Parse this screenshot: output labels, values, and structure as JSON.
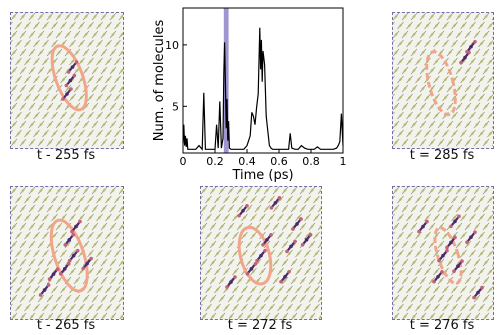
{
  "snapshots": [
    {
      "id": "a",
      "caption": "t - 255 fs",
      "ring_color": "#f2a58a",
      "ring_style": "solid"
    },
    {
      "id": "b",
      "caption": "t = 285 fs",
      "ring_color": "#f2a58a",
      "ring_style": "dashed"
    },
    {
      "id": "c",
      "caption": "t - 265 fs",
      "ring_color": "#f2a58a",
      "ring_style": "solid"
    },
    {
      "id": "d",
      "caption": "t = 272 fs",
      "ring_color": "#f2a58a",
      "ring_style": "solid"
    },
    {
      "id": "e",
      "caption": "t = 276 fs",
      "ring_color": "#f2a58a",
      "ring_style": "dashed"
    }
  ],
  "colors": {
    "lattice": "#b5b86a",
    "lattice_line": "#8a8a6a",
    "molecule": "#4a2a6a",
    "molecule_accent": "#c0607a",
    "frame": "#6f6fa8",
    "highlight_band": "#9f95cf"
  },
  "chart_data": {
    "type": "line",
    "xlabel": "Time (ps)",
    "ylabel": "Num. of molecules",
    "xlim": [
      0,
      1.0
    ],
    "ylim": [
      1.2,
      13
    ],
    "xticks": [
      0,
      0.2,
      0.4,
      0.6,
      0.8,
      1
    ],
    "xtick_labels": [
      "0",
      "0.2",
      "0.4",
      "0.6",
      "0.8",
      "1"
    ],
    "yticks": [
      5,
      10
    ],
    "ytick_labels": [
      "5",
      "10"
    ],
    "highlight_band": [
      0.255,
      0.285
    ],
    "series": [
      {
        "x": [
          0.0,
          0.005,
          0.01,
          0.015,
          0.02,
          0.025,
          0.03,
          0.05,
          0.08,
          0.1,
          0.12,
          0.13,
          0.14,
          0.15,
          0.17,
          0.2,
          0.21,
          0.22,
          0.23,
          0.24,
          0.25,
          0.255,
          0.26,
          0.265,
          0.27,
          0.275,
          0.28,
          0.285,
          0.29,
          0.3,
          0.32,
          0.33,
          0.34,
          0.35,
          0.36,
          0.38,
          0.4,
          0.42,
          0.43,
          0.44,
          0.45,
          0.46,
          0.47,
          0.48,
          0.485,
          0.49,
          0.495,
          0.5,
          0.51,
          0.52,
          0.53,
          0.54,
          0.55,
          0.56,
          0.6,
          0.64,
          0.66,
          0.67,
          0.68,
          0.7,
          0.72,
          0.74,
          0.76,
          0.78,
          0.8,
          0.82,
          0.84,
          0.86,
          0.88,
          0.9,
          0.92,
          0.94,
          0.96,
          0.97,
          0.98,
          0.99,
          1.0
        ],
        "y": [
          2.0,
          3.5,
          1.8,
          2.6,
          1.7,
          2.4,
          1.5,
          1.5,
          1.5,
          1.8,
          1.5,
          6.1,
          1.5,
          1.5,
          1.5,
          1.5,
          3.5,
          1.6,
          5.4,
          1.6,
          2.4,
          7.6,
          10.2,
          7.0,
          3.2,
          5.6,
          2.2,
          3.8,
          1.6,
          1.5,
          1.5,
          1.5,
          1.5,
          1.5,
          1.5,
          1.5,
          1.8,
          2.6,
          4.5,
          4.2,
          3.5,
          4.9,
          6.0,
          11.4,
          8.0,
          10.4,
          7.0,
          9.5,
          8.4,
          4.2,
          3.0,
          1.8,
          1.6,
          1.5,
          1.5,
          1.5,
          1.5,
          2.8,
          1.6,
          1.5,
          1.5,
          1.8,
          1.6,
          1.5,
          1.5,
          1.5,
          1.7,
          1.5,
          1.5,
          1.5,
          1.5,
          1.5,
          1.6,
          1.8,
          2.1,
          4.4,
          1.8
        ]
      }
    ]
  }
}
